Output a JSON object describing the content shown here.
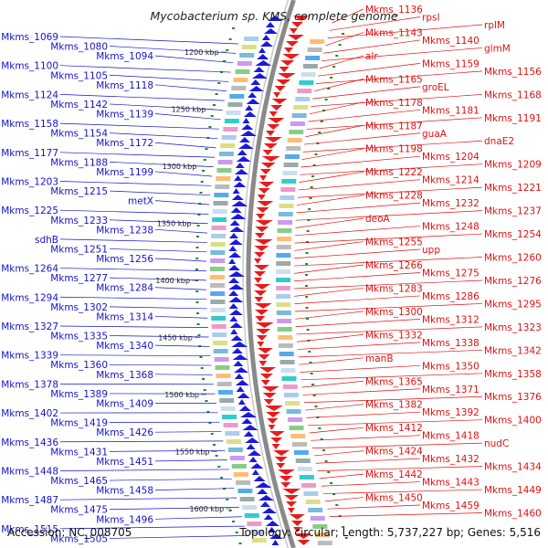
{
  "title": "Mycobacterium sp. KMS, complete genome",
  "footer": {
    "accession": "Accession: NC_008705",
    "topology": "Topology: circular; Length: 5,737,227 bp; Genes: 5,516"
  },
  "colors": {
    "left_label": "#1414c8",
    "right_label": "#e01010",
    "forward_feature": "#1a1adc",
    "reverse_feature": "#e81c1c",
    "backbone": "#8a8a8a",
    "tick": "#1f8a1f"
  },
  "scale_marks": [
    "1200 kbp",
    "1250 kbp",
    "1300 kbp",
    "1350 kbp",
    "1400 kbp",
    "1450 kbp",
    "1500 kbp",
    "1550 kbp",
    "1600 kbp"
  ],
  "left_labels": [
    "Mkms_1069",
    "Mkms_1080",
    "Mkms_1094",
    "Mkms_1100",
    "Mkms_1105",
    "Mkms_1118",
    "Mkms_1124",
    "Mkms_1142",
    "Mkms_1139",
    "Mkms_1158",
    "Mkms_1154",
    "Mkms_1172",
    "Mkms_1177",
    "Mkms_1188",
    "Mkms_1199",
    "Mkms_1203",
    "Mkms_1215",
    "metX",
    "Mkms_1225",
    "Mkms_1233",
    "Mkms_1238",
    "sdhB",
    "Mkms_1251",
    "Mkms_1256",
    "Mkms_1264",
    "Mkms_1277",
    "Mkms_1284",
    "Mkms_1294",
    "Mkms_1302",
    "Mkms_1314",
    "Mkms_1327",
    "Mkms_1335",
    "Mkms_1340",
    "Mkms_1339",
    "Mkms_1360",
    "Mkms_1368",
    "Mkms_1378",
    "Mkms_1389",
    "Mkms_1409",
    "Mkms_1402",
    "Mkms_1419",
    "Mkms_1426",
    "Mkms_1436",
    "Mkms_1431",
    "Mkms_1451",
    "Mkms_1448",
    "Mkms_1465",
    "Mkms_1458",
    "Mkms_1487",
    "Mkms_1475",
    "Mkms_1496",
    "Mkms_1515",
    "Mkms_1505"
  ],
  "right_labels": [
    "Mkms_1136",
    "rpsI",
    "rplM",
    "Mkms_1143",
    "Mkms_1140",
    "glmM",
    "alr",
    "Mkms_1159",
    "Mkms_1156",
    "Mkms_1165",
    "groEL",
    "Mkms_1168",
    "Mkms_1178",
    "Mkms_1181",
    "Mkms_1191",
    "Mkms_1187",
    "guaA",
    "dnaE2",
    "Mkms_1198",
    "Mkms_1204",
    "Mkms_1209",
    "Mkms_1222",
    "Mkms_1214",
    "Mkms_1221",
    "Mkms_1228",
    "Mkms_1232",
    "Mkms_1237",
    "deoA",
    "Mkms_1248",
    "Mkms_1254",
    "Mkms_1255",
    "upp",
    "Mkms_1260",
    "Mkms_1266",
    "Mkms_1275",
    "Mkms_1276",
    "Mkms_1283",
    "Mkms_1286",
    "Mkms_1295",
    "Mkms_1300",
    "Mkms_1312",
    "Mkms_1323",
    "Mkms_1332",
    "Mkms_1338",
    "Mkms_1342",
    "manB",
    "Mkms_1350",
    "Mkms_1358",
    "Mkms_1365",
    "Mkms_1371",
    "Mkms_1376",
    "Mkms_1382",
    "Mkms_1392",
    "Mkms_1400",
    "Mkms_1412",
    "Mkms_1418",
    "nudC",
    "Mkms_1424",
    "Mkms_1432",
    "Mkms_1434",
    "Mkms_1442",
    "Mkms_1443",
    "Mkms_1449",
    "Mkms_1450",
    "Mkms_1459",
    "Mkms_1460"
  ]
}
